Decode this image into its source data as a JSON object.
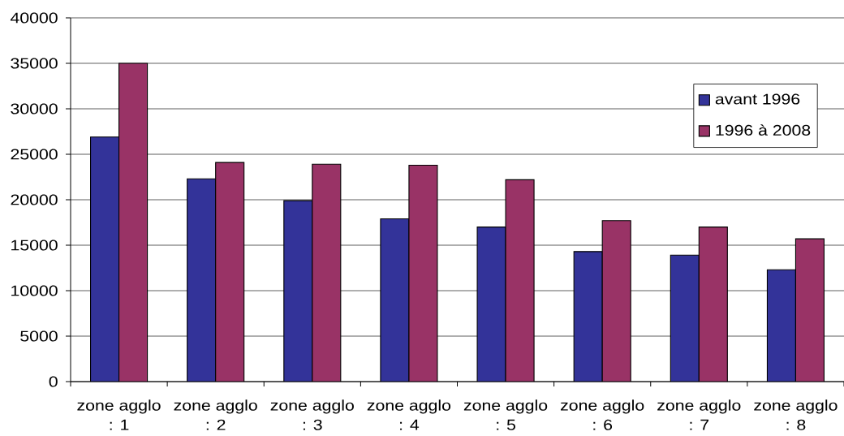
{
  "chart_data": {
    "type": "bar",
    "categories": [
      "zone agglo : 1",
      "zone agglo : 2",
      "zone agglo : 3",
      "zone agglo : 4",
      "zone agglo : 5",
      "zone agglo : 6",
      "zone agglo : 7",
      "zone agglo : 8"
    ],
    "series": [
      {
        "name": "avant 1996",
        "color": "#333399",
        "values": [
          26900,
          22300,
          19900,
          17900,
          17000,
          14300,
          13900,
          12300
        ]
      },
      {
        "name": "1996 à 2008",
        "color": "#993366",
        "values": [
          35000,
          24100,
          23900,
          23800,
          22200,
          17700,
          17000,
          15700
        ]
      }
    ],
    "ylim": [
      0,
      40000
    ],
    "yticks": [
      0,
      5000,
      10000,
      15000,
      20000,
      25000,
      30000,
      35000,
      40000
    ],
    "grid": "y",
    "legend": "top right"
  }
}
